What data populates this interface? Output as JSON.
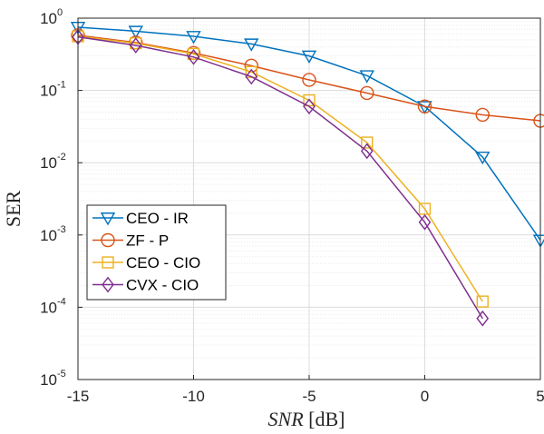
{
  "chart_data": {
    "type": "line",
    "xlabel_var": "SNR",
    "xlabel_unit": "[dB]",
    "ylabel": "SER",
    "xlim": [
      -15,
      5
    ],
    "ylim": [
      1e-05,
      1
    ],
    "yscale": "log",
    "grid": true,
    "legend_position": "lower-left",
    "x_ticks": [
      -15,
      -10,
      -5,
      0,
      5
    ],
    "y_ticks": [
      {
        "base": "10",
        "exp": "0",
        "value": 1
      },
      {
        "base": "10",
        "exp": "-1",
        "value": 0.1
      },
      {
        "base": "10",
        "exp": "-2",
        "value": 0.01
      },
      {
        "base": "10",
        "exp": "-3",
        "value": 0.001
      },
      {
        "base": "10",
        "exp": "-4",
        "value": 0.0001
      },
      {
        "base": "10",
        "exp": "-5",
        "value": 1e-05
      }
    ],
    "series": [
      {
        "name": "CEO - IR",
        "color": "#0072BD",
        "marker": "triangle-down",
        "x": [
          -15,
          -12.5,
          -10,
          -7.5,
          -5,
          -2.5,
          0,
          2.5,
          5
        ],
        "y": [
          0.75,
          0.66,
          0.56,
          0.44,
          0.3,
          0.16,
          0.06,
          0.012,
          0.00085
        ]
      },
      {
        "name": "ZF - P",
        "color": "#D95319",
        "marker": "circle",
        "x": [
          -15,
          -12.5,
          -10,
          -7.5,
          -5,
          -2.5,
          0,
          2.5,
          5
        ],
        "y": [
          0.58,
          0.46,
          0.33,
          0.22,
          0.14,
          0.092,
          0.06,
          0.046,
          0.038
        ]
      },
      {
        "name": "CEO - CIO",
        "color": "#EDB120",
        "marker": "square",
        "x": [
          -15,
          -12.5,
          -10,
          -7.5,
          -5,
          -2.5,
          0,
          2.5
        ],
        "y": [
          0.56,
          0.45,
          0.32,
          0.18,
          0.073,
          0.019,
          0.0023,
          0.00012
        ]
      },
      {
        "name": "CVX - CIO",
        "color": "#7E2F8E",
        "marker": "diamond",
        "x": [
          -15,
          -12.5,
          -10,
          -7.5,
          -5,
          -2.5,
          0,
          2.5
        ],
        "y": [
          0.55,
          0.42,
          0.29,
          0.155,
          0.06,
          0.0145,
          0.0015,
          7e-05
        ]
      }
    ]
  }
}
